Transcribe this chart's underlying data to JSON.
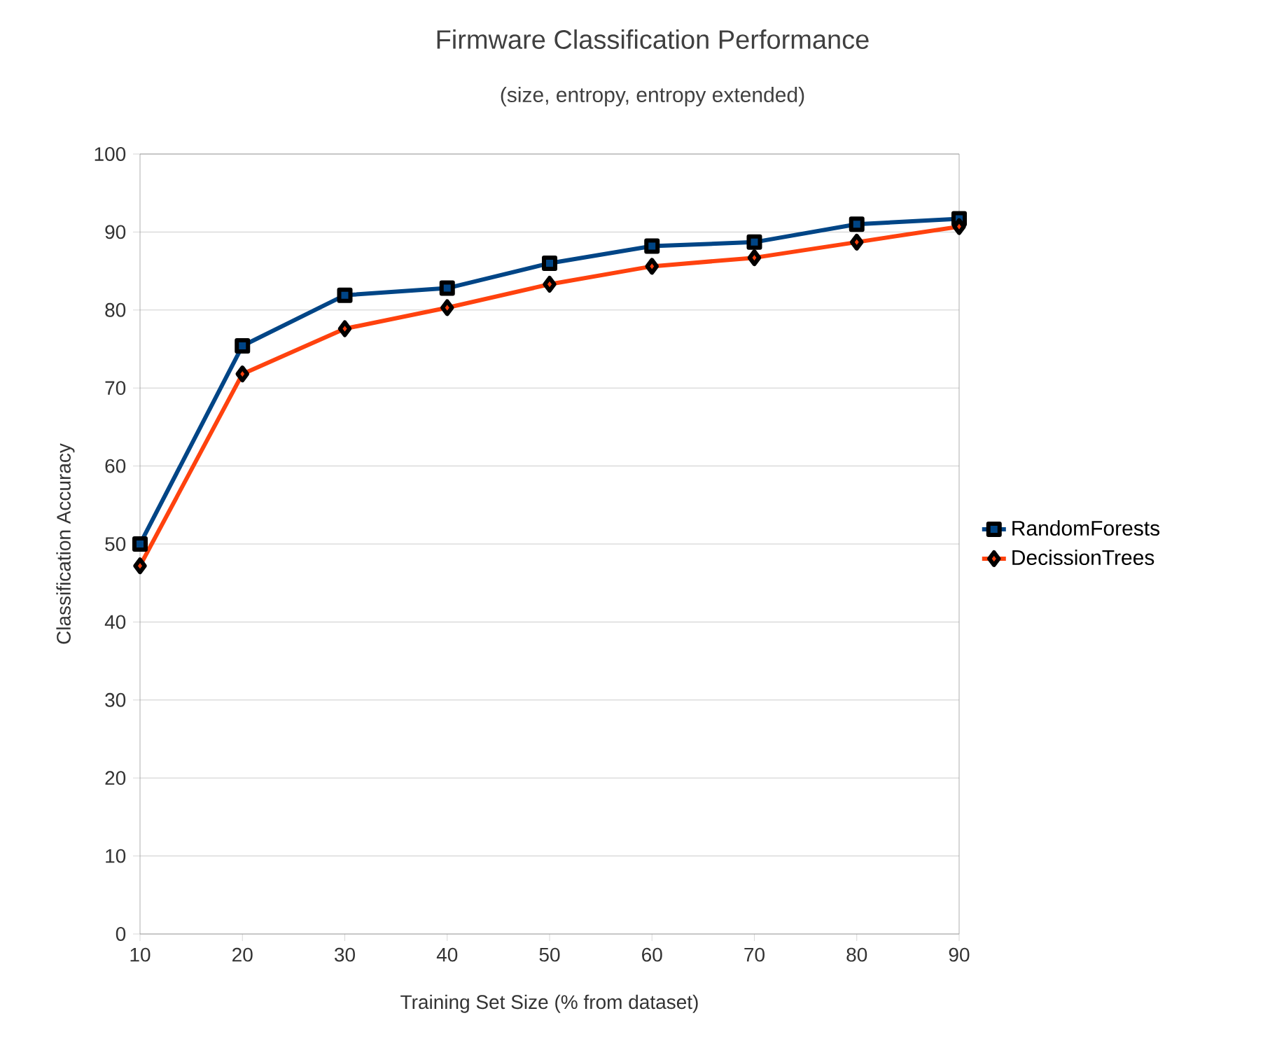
{
  "chart_data": {
    "type": "line",
    "title": "Firmware Classification Performance",
    "subtitle": "(size, entropy, entropy extended)",
    "xlabel": "Training Set Size (% from dataset)",
    "ylabel": "Classification Accuracy",
    "x": [
      10,
      20,
      30,
      40,
      50,
      60,
      70,
      80,
      90
    ],
    "series": [
      {
        "name": "RandomForests",
        "color": "#004586",
        "marker": "square",
        "values": [
          50.0,
          75.4,
          81.9,
          82.8,
          86.0,
          88.2,
          88.7,
          91.0,
          91.7
        ]
      },
      {
        "name": "DecissionTrees",
        "color": "#ff420e",
        "marker": "diamond",
        "values": [
          47.2,
          71.8,
          77.6,
          80.3,
          83.3,
          85.6,
          86.7,
          88.7,
          90.7
        ]
      }
    ],
    "xlim": [
      10,
      90
    ],
    "xticks": [
      10,
      20,
      30,
      40,
      50,
      60,
      70,
      80,
      90
    ],
    "ylim": [
      0,
      100
    ],
    "yticks": [
      0,
      10,
      20,
      30,
      40,
      50,
      60,
      70,
      80,
      90,
      100
    ],
    "grid": "y",
    "legend": "right",
    "line_style": "solid"
  }
}
